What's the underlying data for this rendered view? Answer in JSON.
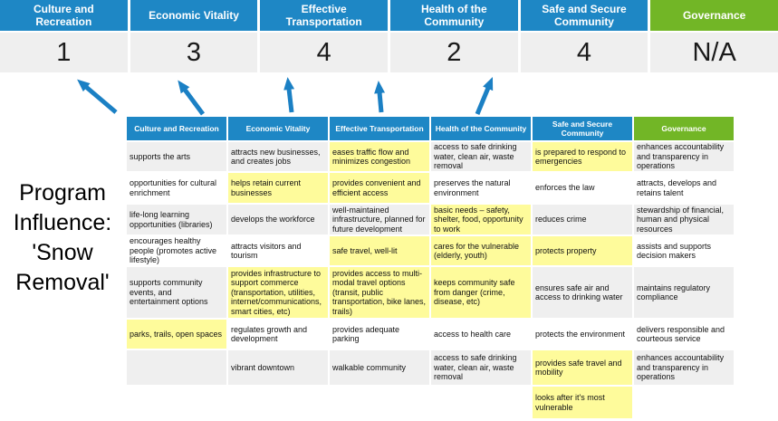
{
  "colors": {
    "blue": "#1E87C5",
    "green": "#72B626",
    "highlight": "#FEFB9B",
    "stripe": "#EFEFEF",
    "arrow": "#1B80C4",
    "scorebg": "#EFEFEF"
  },
  "top_band": {
    "columns": [
      {
        "label": "Culture and Recreation",
        "score": "1",
        "type": "blue"
      },
      {
        "label": "Economic Vitality",
        "score": "3",
        "type": "blue"
      },
      {
        "label": "Effective Transportation",
        "score": "4",
        "type": "blue"
      },
      {
        "label": "Health of the Community",
        "score": "2",
        "type": "blue"
      },
      {
        "label": "Safe and Secure Community",
        "score": "4",
        "type": "blue"
      },
      {
        "label": "Governance",
        "score": "N/A",
        "type": "green"
      }
    ]
  },
  "title": {
    "lines": [
      "Program",
      "Influence:",
      "'Snow",
      "Removal'"
    ]
  },
  "matrix": {
    "headers": [
      "Culture and Recreation",
      "Economic Vitality",
      "Effective Transportation",
      "Health of the Community",
      "Safe and Secure Community",
      "Governance"
    ],
    "rows": [
      {
        "cells": [
          {
            "text": "supports the arts",
            "hl": false
          },
          {
            "text": "attracts new businesses, and creates jobs",
            "hl": false
          },
          {
            "text": "eases traffic flow and minimizes congestion",
            "hl": true
          },
          {
            "text": "access to safe drinking water, clean air, waste removal",
            "hl": false
          },
          {
            "text": "is prepared to respond to emergencies",
            "hl": true
          },
          {
            "text": "enhances accountability and transparency in operations",
            "hl": false
          }
        ]
      },
      {
        "cells": [
          {
            "text": "opportunities for cultural enrichment",
            "hl": false
          },
          {
            "text": "helps retain current businesses",
            "hl": true
          },
          {
            "text": "provides convenient and efficient access",
            "hl": true
          },
          {
            "text": "preserves the natural environment",
            "hl": false
          },
          {
            "text": "enforces the law",
            "hl": false
          },
          {
            "text": "attracts, develops and retains talent",
            "hl": false
          }
        ]
      },
      {
        "cells": [
          {
            "text": "life-long learning opportunities (libraries)",
            "hl": false
          },
          {
            "text": "develops the workforce",
            "hl": false
          },
          {
            "text": "well-maintained infrastructure, planned for future development",
            "hl": false
          },
          {
            "text": "basic needs – safety, shelter, food, opportunity to work",
            "hl": true
          },
          {
            "text": "reduces crime",
            "hl": false
          },
          {
            "text": "stewardship of financial, human and physical resources",
            "hl": false
          }
        ]
      },
      {
        "cells": [
          {
            "text": "encourages healthy people (promotes active lifestyle)",
            "hl": false
          },
          {
            "text": "attracts visitors and tourism",
            "hl": false
          },
          {
            "text": "safe travel, well-lit",
            "hl": true
          },
          {
            "text": "cares for the vulnerable (elderly, youth)",
            "hl": true
          },
          {
            "text": "protects property",
            "hl": true
          },
          {
            "text": "assists and supports decision makers",
            "hl": false
          }
        ]
      },
      {
        "cells": [
          {
            "text": "supports community events, and entertainment options",
            "hl": false
          },
          {
            "text": "provides infrastructure to support commerce (transportation, utilities, internet/communications, smart cities, etc)",
            "hl": true
          },
          {
            "text": "provides access to multi-modal travel options (transit, public transportation, bike lanes, trails)",
            "hl": true
          },
          {
            "text": "keeps community safe from danger (crime, disease, etc)",
            "hl": true
          },
          {
            "text": "ensures safe air and access to drinking water",
            "hl": false
          },
          {
            "text": "maintains regulatory compliance",
            "hl": false
          }
        ]
      },
      {
        "cells": [
          {
            "text": "parks, trails, open spaces",
            "hl": true
          },
          {
            "text": "regulates growth and development",
            "hl": false
          },
          {
            "text": "provides adequate parking",
            "hl": false
          },
          {
            "text": "access to health care",
            "hl": false
          },
          {
            "text": "protects the environment",
            "hl": false
          },
          {
            "text": "delivers responsible and courteous service",
            "hl": false
          }
        ]
      },
      {
        "cells": [
          {
            "text": "",
            "hl": false
          },
          {
            "text": "vibrant downtown",
            "hl": false
          },
          {
            "text": "walkable community",
            "hl": false
          },
          {
            "text": "access to safe drinking water, clean air, waste removal",
            "hl": false
          },
          {
            "text": "provides safe travel and mobility",
            "hl": true
          },
          {
            "text": "enhances accountability and transparency in operations",
            "hl": false
          }
        ]
      },
      {
        "cells": [
          {
            "text": "",
            "hl": false
          },
          {
            "text": "",
            "hl": false
          },
          {
            "text": "",
            "hl": false
          },
          {
            "text": "",
            "hl": false
          },
          {
            "text": "looks after it's most vulnerable",
            "hl": true
          },
          {
            "text": "",
            "hl": false
          }
        ]
      }
    ]
  }
}
